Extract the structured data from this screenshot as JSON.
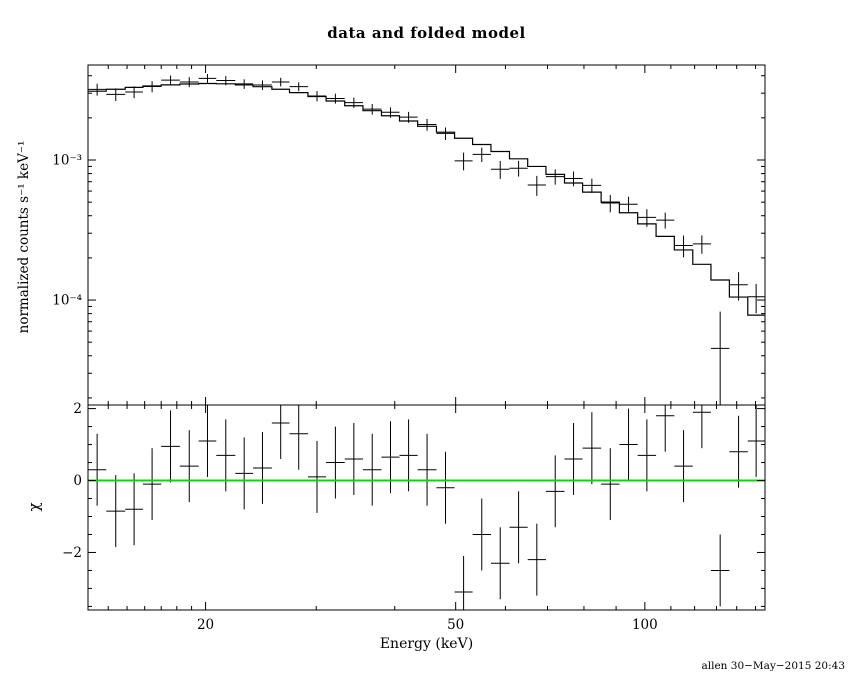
{
  "title": "data and folded model",
  "footer": "allen 30−May−2015 20:43",
  "chart_data": {
    "type": "scatter",
    "description": "X-ray spectrum: data points with error bars and stepped folded model (top, log-log), chi residuals with green zero line (bottom)",
    "x_axis": {
      "label": "Energy (keV)",
      "scale": "log",
      "lim": [
        13.0,
        155.3
      ],
      "major_ticks": [
        {
          "value": 20,
          "label": "20"
        },
        {
          "value": 50,
          "label": "50"
        },
        {
          "value": 100,
          "label": "100"
        }
      ],
      "minor_ticks": [
        14,
        15,
        16,
        17,
        18,
        19,
        30,
        40,
        60,
        70,
        80,
        90,
        110,
        120,
        130,
        140,
        150
      ]
    },
    "top_panel": {
      "ylabel": "normalized counts s⁻¹ keV⁻¹",
      "scale": "log",
      "ylim": [
        1.78e-05,
        0.00477
      ],
      "major_ticks": [
        {
          "value": 0.001,
          "label": "10⁻³"
        },
        {
          "value": 0.0001,
          "label": "10⁻⁴"
        }
      ],
      "series": [
        "data",
        "folded model"
      ]
    },
    "bottom_panel": {
      "ylabel": "χ",
      "scale": "linear",
      "ylim": [
        -3.6,
        2.1
      ],
      "major_ticks": [
        {
          "value": 2,
          "label": "2"
        },
        {
          "value": 0,
          "label": "0"
        },
        {
          "value": -2,
          "label": "−2"
        }
      ],
      "minor_step": 0.5,
      "zero_line_color": "#00dd00",
      "residual_error": 1
    },
    "bins_format": [
      "e_lo_keV",
      "e_hi_keV",
      "model_rate",
      "chi",
      "frac_err"
    ],
    "bins": [
      [
        13.0,
        13.9,
        0.0031,
        0.3,
        0.1
      ],
      [
        13.9,
        14.9,
        0.0032,
        -0.85,
        0.095
      ],
      [
        14.9,
        15.9,
        0.0033,
        -0.8,
        0.09
      ],
      [
        15.9,
        17.0,
        0.00338,
        -0.1,
        0.09
      ],
      [
        17.0,
        18.2,
        0.00344,
        0.95,
        0.085
      ],
      [
        18.2,
        19.5,
        0.00349,
        0.4,
        0.085
      ],
      [
        19.5,
        20.8,
        0.00352,
        1.1,
        0.08
      ],
      [
        20.8,
        22.3,
        0.0035,
        0.7,
        0.08
      ],
      [
        22.3,
        23.8,
        0.00344,
        0.2,
        0.08
      ],
      [
        23.8,
        25.5,
        0.00334,
        0.35,
        0.08
      ],
      [
        25.5,
        27.2,
        0.0032,
        1.6,
        0.08
      ],
      [
        27.2,
        29.1,
        0.00303,
        1.3,
        0.08
      ],
      [
        29.1,
        31.1,
        0.00284,
        0.1,
        0.085
      ],
      [
        31.1,
        33.3,
        0.00264,
        0.5,
        0.085
      ],
      [
        33.3,
        35.6,
        0.00244,
        0.6,
        0.09
      ],
      [
        35.6,
        38.1,
        0.00225,
        0.3,
        0.09
      ],
      [
        38.1,
        40.7,
        0.00207,
        0.65,
        0.09
      ],
      [
        40.7,
        43.5,
        0.0019,
        0.7,
        0.095
      ],
      [
        43.5,
        46.6,
        0.00174,
        0.3,
        0.1
      ],
      [
        46.6,
        49.8,
        0.00158,
        -0.2,
        0.1
      ],
      [
        49.8,
        53.2,
        0.00143,
        -3.1,
        0.1
      ],
      [
        53.2,
        56.9,
        0.00129,
        -1.5,
        0.1
      ],
      [
        56.9,
        60.9,
        0.00115,
        -2.3,
        0.11
      ],
      [
        60.9,
        65.1,
        0.00102,
        -1.3,
        0.11
      ],
      [
        65.1,
        69.6,
        0.0009,
        -2.2,
        0.12
      ],
      [
        69.6,
        74.5,
        0.00079,
        -0.3,
        0.12
      ],
      [
        74.5,
        79.6,
        0.000685,
        0.6,
        0.13
      ],
      [
        79.6,
        85.2,
        0.00059,
        0.9,
        0.13
      ],
      [
        85.2,
        91.1,
        0.0005,
        -0.1,
        0.14
      ],
      [
        91.1,
        97.4,
        0.00042,
        1.0,
        0.15
      ],
      [
        97.4,
        104.2,
        0.00035,
        0.7,
        0.16
      ],
      [
        104.2,
        111.4,
        0.000285,
        1.8,
        0.17
      ],
      [
        111.4,
        119.2,
        0.000228,
        0.4,
        0.19
      ],
      [
        119.2,
        127.4,
        0.00018,
        1.9,
        0.21
      ],
      [
        127.4,
        136.3,
        0.000139,
        -2.5,
        0.27
      ],
      [
        136.3,
        145.8,
        0.000105,
        0.8,
        0.28
      ],
      [
        145.8,
        155.0,
        7.8e-05,
        1.1,
        0.32
      ]
    ]
  }
}
